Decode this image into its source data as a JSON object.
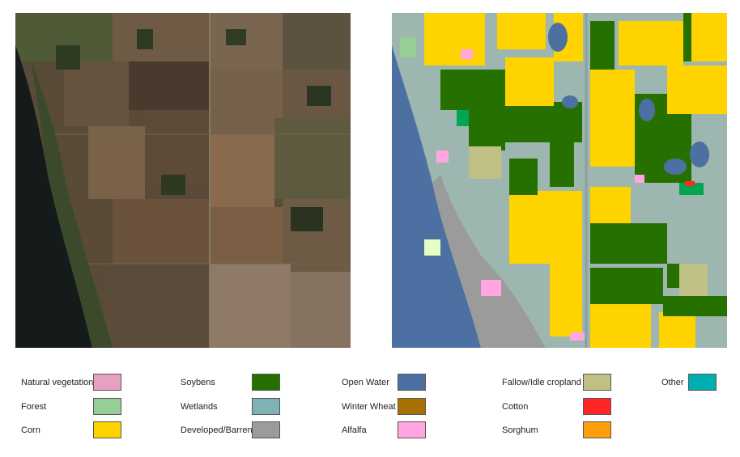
{
  "panels": [
    {
      "id": "satellite",
      "kind": "satellite image"
    },
    {
      "id": "landcover",
      "kind": "land cover classification map"
    }
  ],
  "legend": {
    "columns": [
      [
        {
          "label": "Natural vegetation",
          "color": "#e8a0c0"
        },
        {
          "label": "Forest",
          "color": "#96cf96"
        },
        {
          "label": "Corn",
          "color": "#ffd300"
        }
      ],
      [
        {
          "label": "Soybens",
          "color": "#267000"
        },
        {
          "label": "Wetlands",
          "color": "#7fb2b2"
        },
        {
          "label": "Developed/Barren",
          "color": "#9b9b9b"
        }
      ],
      [
        {
          "label": "Open Water",
          "color": "#4d70a3"
        },
        {
          "label": "Winter Wheat",
          "color": "#a87000"
        },
        {
          "label": "Alfalfa",
          "color": "#ffa5e2"
        }
      ],
      [
        {
          "label": "Fallow/Idle cropland",
          "color": "#c0c084"
        },
        {
          "label": "Cotton",
          "color": "#ff2626"
        },
        {
          "label": "Sorghum",
          "color": "#ff9e0b"
        }
      ],
      [
        {
          "label": "Other",
          "color": "#00afb2"
        }
      ]
    ]
  }
}
